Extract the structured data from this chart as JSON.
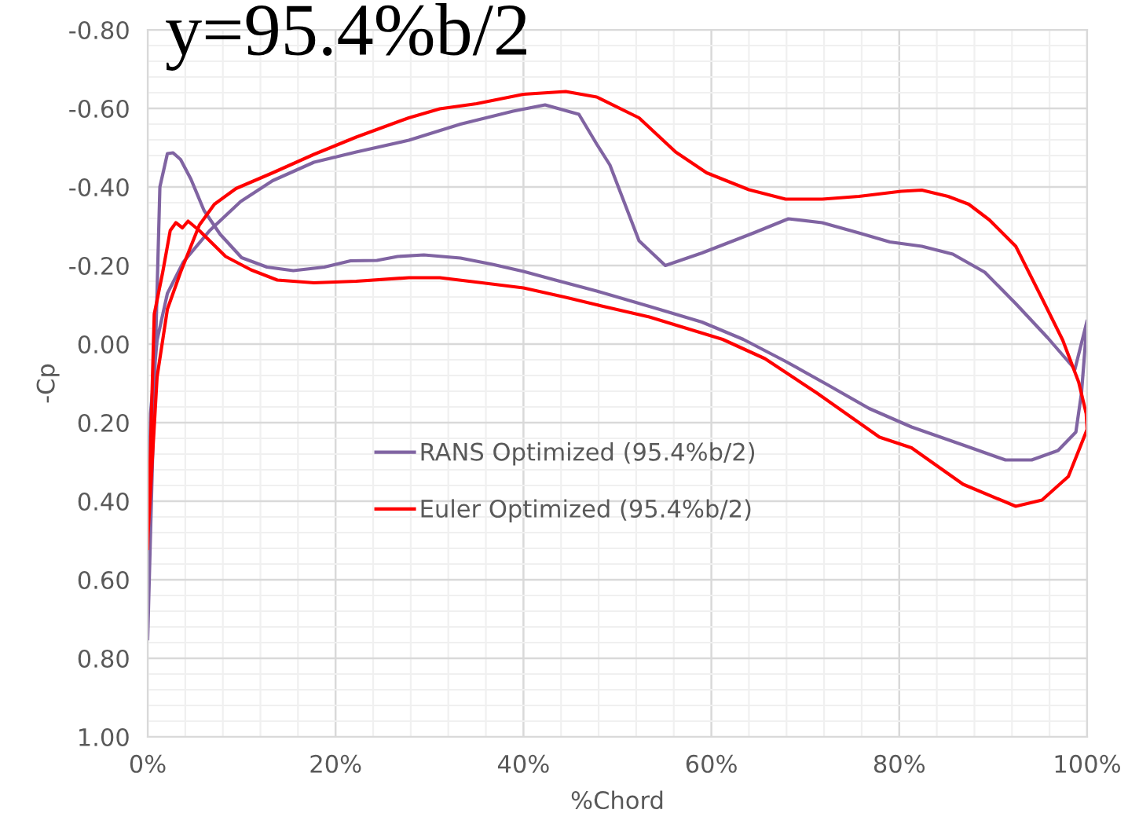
{
  "chart_data": {
    "type": "line",
    "title": "y=95.4%b/2",
    "xlabel": "%Chord",
    "ylabel": "-Cp",
    "xlim": [
      0,
      100
    ],
    "ylim": [
      1.0,
      -0.8
    ],
    "xticks": [
      {
        "value": 0,
        "label": "0%"
      },
      {
        "value": 20,
        "label": "20%"
      },
      {
        "value": 40,
        "label": "40%"
      },
      {
        "value": 60,
        "label": "60%"
      },
      {
        "value": 80,
        "label": "80%"
      },
      {
        "value": 100,
        "label": "100%"
      }
    ],
    "yticks": [
      {
        "value": -0.8,
        "label": "-0.80"
      },
      {
        "value": -0.6,
        "label": "-0.60"
      },
      {
        "value": -0.4,
        "label": "-0.40"
      },
      {
        "value": -0.2,
        "label": "-0.20"
      },
      {
        "value": 0,
        "label": "0.00"
      },
      {
        "value": 0.2,
        "label": "0.20"
      },
      {
        "value": 0.4,
        "label": "0.40"
      },
      {
        "value": 0.6,
        "label": "0.60"
      },
      {
        "value": 0.8,
        "label": "0.80"
      },
      {
        "value": 1.0,
        "label": "1.00"
      }
    ],
    "grid": true,
    "legend": "center",
    "marker": "none",
    "line_style": "solid",
    "series": [
      {
        "name": "RANS Optimized (95.4%b/2)",
        "color": "#8064a2",
        "x": [
          0,
          1.3,
          2.1,
          2.7,
          3.5,
          4.6,
          6.0,
          7.7,
          10.0,
          12.7,
          15.5,
          18.8,
          21.6,
          24.4,
          26.6,
          29.4,
          33.3,
          36.7,
          40.0,
          43.4,
          47.8,
          53.4,
          59.0,
          63.4,
          67.9,
          72.4,
          76.8,
          81.3,
          86.8,
          91.3,
          94.1,
          96.9,
          98.8,
          99.4,
          100,
          98.7,
          95.8,
          92.4,
          89.1,
          85.7,
          82.4,
          79.0,
          75.7,
          71.8,
          68.2,
          64.5,
          59.0,
          55.1,
          52.3,
          49.2,
          47.8,
          45.9,
          42.3,
          38.9,
          33.3,
          27.8,
          22.2,
          17.7,
          13.3,
          9.9,
          6.6,
          3.8,
          2.1,
          1.0,
          0.3,
          0
        ],
        "values": [
          0.75,
          -0.4,
          -0.485,
          -0.487,
          -0.47,
          -0.42,
          -0.34,
          -0.28,
          -0.22,
          -0.196,
          -0.187,
          -0.196,
          -0.212,
          -0.213,
          -0.223,
          -0.227,
          -0.219,
          -0.203,
          -0.185,
          -0.163,
          -0.135,
          -0.096,
          -0.056,
          -0.012,
          0.044,
          0.104,
          0.164,
          0.211,
          0.257,
          0.295,
          0.295,
          0.271,
          0.224,
          0.124,
          -0.06,
          0.064,
          -0.016,
          -0.103,
          -0.183,
          -0.229,
          -0.249,
          -0.26,
          -0.283,
          -0.309,
          -0.319,
          -0.283,
          -0.232,
          -0.2,
          -0.263,
          -0.456,
          -0.509,
          -0.585,
          -0.609,
          -0.593,
          -0.56,
          -0.519,
          -0.489,
          -0.463,
          -0.416,
          -0.363,
          -0.289,
          -0.209,
          -0.129,
          -0.01,
          0.177,
          0.6
        ]
      },
      {
        "name": "Euler Optimized (95.4%b/2)",
        "color": "#ff0000",
        "x": [
          0,
          0.7,
          1.6,
          2.4,
          3.0,
          3.7,
          4.3,
          5.5,
          8.3,
          11.0,
          13.8,
          17.7,
          22.2,
          27.8,
          31.1,
          35.6,
          40.0,
          44.5,
          47.8,
          53.4,
          61.2,
          65.7,
          71.2,
          77.9,
          81.3,
          86.8,
          92.4,
          95.2,
          98.0,
          100,
          99.9,
          99.1,
          97.4,
          95.2,
          92.4,
          89.6,
          87.4,
          85.2,
          82.4,
          80.2,
          75.7,
          71.8,
          67.9,
          64.0,
          59.5,
          56.2,
          52.3,
          47.8,
          44.5,
          40.0,
          35.0,
          31.1,
          27.8,
          22.2,
          17.7,
          13.3,
          9.4,
          7.1,
          5.5,
          3.5,
          2.1,
          1.0,
          0
        ],
        "values": [
          0.52,
          -0.076,
          -0.183,
          -0.289,
          -0.309,
          -0.296,
          -0.313,
          -0.289,
          -0.223,
          -0.189,
          -0.163,
          -0.156,
          -0.16,
          -0.169,
          -0.169,
          -0.156,
          -0.143,
          -0.119,
          -0.1,
          -0.069,
          -0.012,
          0.037,
          0.124,
          0.237,
          0.264,
          0.357,
          0.413,
          0.397,
          0.337,
          0.217,
          0.177,
          0.097,
          -0.01,
          -0.116,
          -0.249,
          -0.316,
          -0.356,
          -0.376,
          -0.392,
          -0.389,
          -0.376,
          -0.369,
          -0.369,
          -0.393,
          -0.436,
          -0.489,
          -0.576,
          -0.629,
          -0.643,
          -0.636,
          -0.612,
          -0.599,
          -0.576,
          -0.527,
          -0.483,
          -0.436,
          -0.396,
          -0.356,
          -0.303,
          -0.183,
          -0.089,
          0.084,
          0.5
        ]
      }
    ]
  }
}
